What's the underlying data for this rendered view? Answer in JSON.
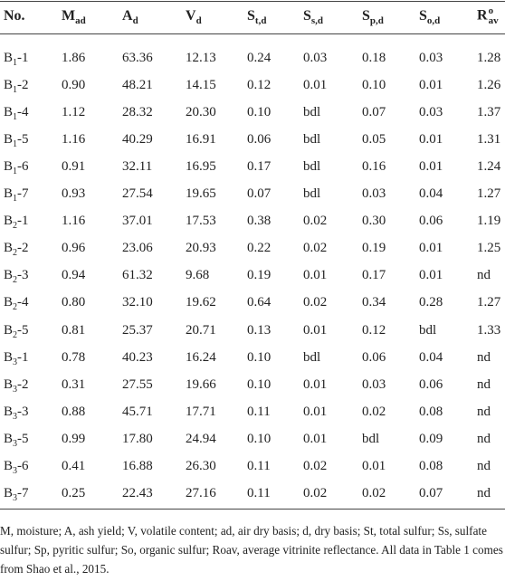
{
  "table": {
    "header": [
      {
        "main": "No."
      },
      {
        "main": "M",
        "sub": "ad"
      },
      {
        "main": "A",
        "sub": "d"
      },
      {
        "main": "V",
        "sub": "d"
      },
      {
        "main": "S",
        "sub": "t,d"
      },
      {
        "main": "S",
        "sub": "s,d"
      },
      {
        "main": "S",
        "sub": "p,d"
      },
      {
        "main": "S",
        "sub": "o,d"
      },
      {
        "main": "R",
        "sup": "o",
        "sub": "av"
      }
    ],
    "rows": [
      {
        "label": {
          "main": "B",
          "sub": "1",
          "rest": "-1"
        },
        "cells": [
          "1.86",
          "63.36",
          "12.13",
          "0.24",
          "0.03",
          "0.18",
          "0.03",
          "1.28"
        ]
      },
      {
        "label": {
          "main": "B",
          "sub": "1",
          "rest": "-2"
        },
        "cells": [
          "0.90",
          "48.21",
          "14.15",
          "0.12",
          "0.01",
          "0.10",
          "0.01",
          "1.26"
        ]
      },
      {
        "label": {
          "main": "B",
          "sub": "1",
          "rest": "-4"
        },
        "cells": [
          "1.12",
          "28.32",
          "20.30",
          "0.10",
          "bdl",
          "0.07",
          "0.03",
          "1.37"
        ]
      },
      {
        "label": {
          "main": "B",
          "sub": "1",
          "rest": "-5"
        },
        "cells": [
          "1.16",
          "40.29",
          "16.91",
          "0.06",
          "bdl",
          "0.05",
          "0.01",
          "1.31"
        ]
      },
      {
        "label": {
          "main": "B",
          "sub": "1",
          "rest": "-6"
        },
        "cells": [
          "0.91",
          "32.11",
          "16.95",
          "0.17",
          "bdl",
          "0.16",
          "0.01",
          "1.24"
        ]
      },
      {
        "label": {
          "main": "B",
          "sub": "1",
          "rest": "-7"
        },
        "cells": [
          "0.93",
          "27.54",
          "19.65",
          "0.07",
          "bdl",
          "0.03",
          "0.04",
          "1.27"
        ]
      },
      {
        "label": {
          "main": "B",
          "sub": "2",
          "rest": "-1"
        },
        "cells": [
          "1.16",
          "37.01",
          "17.53",
          "0.38",
          "0.02",
          "0.30",
          "0.06",
          "1.19"
        ]
      },
      {
        "label": {
          "main": "B",
          "sub": "2",
          "rest": "-2"
        },
        "cells": [
          "0.96",
          "23.06",
          "20.93",
          "0.22",
          "0.02",
          "0.19",
          "0.01",
          "1.25"
        ]
      },
      {
        "label": {
          "main": "B",
          "sub": "2",
          "rest": "-3"
        },
        "cells": [
          "0.94",
          "61.32",
          "9.68",
          "0.19",
          "0.01",
          "0.17",
          "0.01",
          "nd"
        ]
      },
      {
        "label": {
          "main": "B",
          "sub": "2",
          "rest": "-4"
        },
        "cells": [
          "0.80",
          "32.10",
          "19.62",
          "0.64",
          "0.02",
          "0.34",
          "0.28",
          "1.27"
        ]
      },
      {
        "label": {
          "main": "B",
          "sub": "2",
          "rest": "-5"
        },
        "cells": [
          "0.81",
          "25.37",
          "20.71",
          "0.13",
          "0.01",
          "0.12",
          "bdl",
          "1.33"
        ]
      },
      {
        "label": {
          "main": "B",
          "sub": "3",
          "rest": "-1"
        },
        "cells": [
          "0.78",
          "40.23",
          "16.24",
          "0.10",
          "bdl",
          "0.06",
          "0.04",
          "nd"
        ]
      },
      {
        "label": {
          "main": "B",
          "sub": "3",
          "rest": "-2"
        },
        "cells": [
          "0.31",
          "27.55",
          "19.66",
          "0.10",
          "0.01",
          "0.03",
          "0.06",
          "nd"
        ]
      },
      {
        "label": {
          "main": "B",
          "sub": "3",
          "rest": "-3"
        },
        "cells": [
          "0.88",
          "45.71",
          "17.71",
          "0.11",
          "0.01",
          "0.02",
          "0.08",
          "nd"
        ]
      },
      {
        "label": {
          "main": "B",
          "sub": "3",
          "rest": "-5"
        },
        "cells": [
          "0.99",
          "17.80",
          "24.94",
          "0.10",
          "0.01",
          "bdl",
          "0.09",
          "nd"
        ]
      },
      {
        "label": {
          "main": "B",
          "sub": "3",
          "rest": "-6"
        },
        "cells": [
          "0.41",
          "16.88",
          "26.30",
          "0.11",
          "0.02",
          "0.01",
          "0.08",
          "nd"
        ]
      },
      {
        "label": {
          "main": "B",
          "sub": "3",
          "rest": "-7"
        },
        "cells": [
          "0.25",
          "22.43",
          "27.16",
          "0.11",
          "0.02",
          "0.02",
          "0.07",
          "nd"
        ]
      }
    ],
    "footnote": "M, moisture; A, ash yield; V, volatile content; ad, air dry basis; d, dry basis; St, total sulfur; Ss, sulfate sulfur; Sp, pyritic sulfur; So, organic sulfur; Roav, average vitrinite reflectance. All data in Table 1 comes from Shao et al., 2015."
  }
}
